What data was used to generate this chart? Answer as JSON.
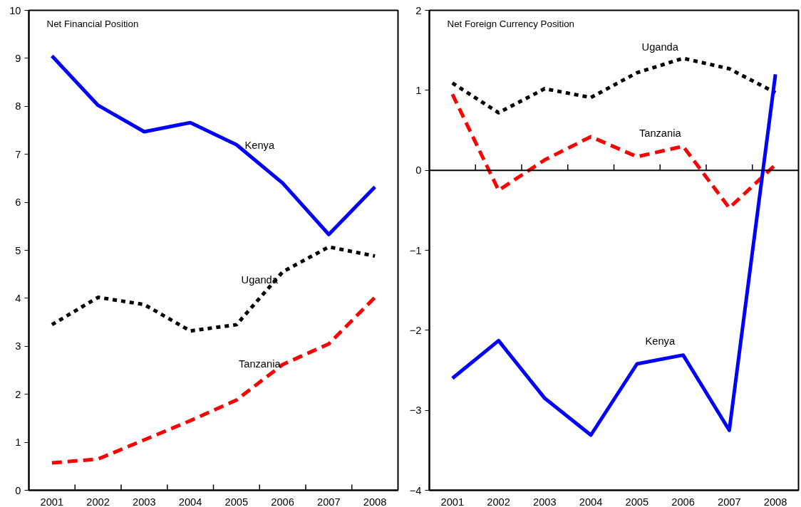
{
  "chart_data": [
    {
      "type": "line",
      "title": "Net Financial Position",
      "categories": [
        "2001",
        "2002",
        "2003",
        "2004",
        "2005",
        "2006",
        "2007",
        "2008"
      ],
      "ylim": [
        0,
        10
      ],
      "yticks": [
        0,
        1,
        2,
        3,
        4,
        5,
        6,
        7,
        8,
        9,
        10
      ],
      "grid": false,
      "legend": false,
      "series": [
        {
          "name": "Kenya",
          "color": "#0000ff",
          "line_style": "solid",
          "values": [
            9.05,
            8.02,
            7.47,
            7.66,
            7.2,
            6.4,
            5.33,
            6.32
          ]
        },
        {
          "name": "Uganda",
          "color": "#000000",
          "line_style": "dotted",
          "values": [
            3.45,
            4.02,
            3.87,
            3.32,
            3.45,
            4.55,
            5.07,
            4.88
          ]
        },
        {
          "name": "Tanzania",
          "color": "#ff0000",
          "line_style": "dashed",
          "values": [
            0.57,
            0.65,
            1.05,
            1.45,
            1.88,
            2.62,
            3.05,
            4.02
          ]
        }
      ]
    },
    {
      "type": "line",
      "title": "Net Foreign Currency Position",
      "categories": [
        "2001",
        "2002",
        "2003",
        "2004",
        "2005",
        "2006",
        "2007",
        "2008"
      ],
      "ylim": [
        -4,
        2
      ],
      "yticks": [
        -4,
        -3,
        -2,
        -1,
        0,
        1,
        2
      ],
      "grid": false,
      "legend": false,
      "ref_lines": [
        {
          "axis": "y",
          "value": 0,
          "color": "#000000"
        }
      ],
      "series": [
        {
          "name": "Uganda",
          "color": "#000000",
          "line_style": "dotted",
          "values": [
            1.09,
            0.72,
            1.02,
            0.91,
            1.22,
            1.4,
            1.27,
            0.97
          ]
        },
        {
          "name": "Tanzania",
          "color": "#ff0000",
          "line_style": "dashed",
          "values": [
            0.95,
            -0.25,
            0.13,
            0.42,
            0.17,
            0.3,
            -0.47,
            0.07
          ]
        },
        {
          "name": "Kenya",
          "color": "#0000ff",
          "line_style": "solid",
          "values": [
            -2.6,
            -2.13,
            -2.85,
            -3.31,
            -2.42,
            -2.31,
            -3.25,
            1.2
          ]
        }
      ]
    }
  ]
}
